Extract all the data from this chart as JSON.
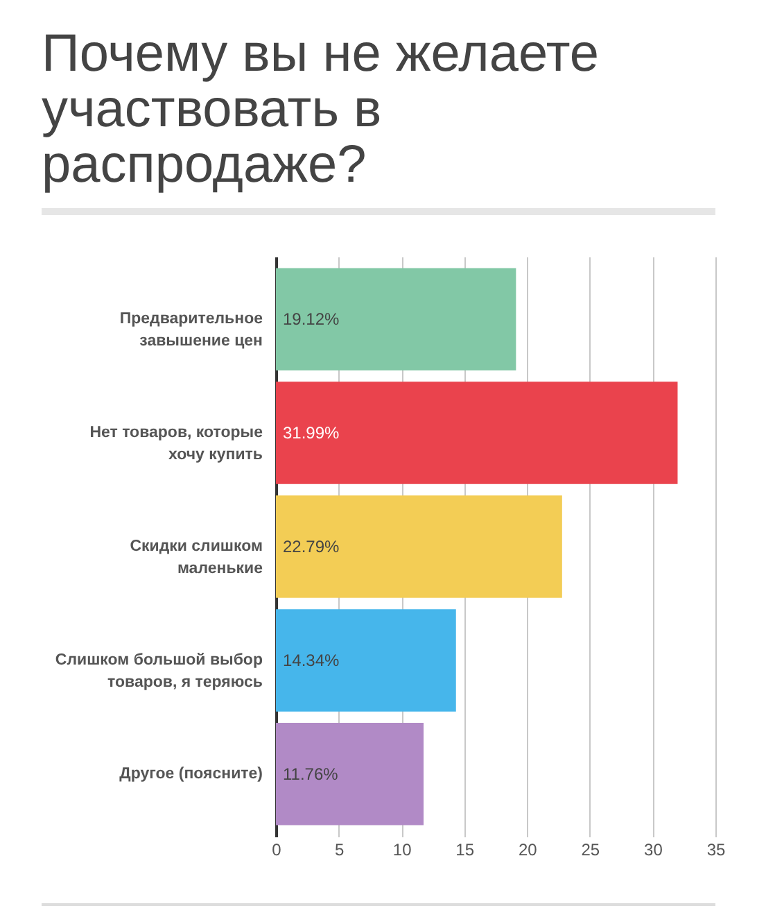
{
  "chart_data": {
    "type": "bar",
    "orientation": "horizontal",
    "title": "Почему вы не желаете участвовать в распродаже?",
    "categories": [
      "Предварительное завышение цен",
      "Нет товаров, которые хочу купить",
      "Скидки слишком маленькие",
      "Слишком большой выбор товаров, я теряюсь",
      "Другое (поясните)"
    ],
    "values": [
      19.12,
      31.99,
      22.79,
      14.34,
      11.76
    ],
    "colors": [
      "#82c8a6",
      "#ea434d",
      "#f3cd55",
      "#46b6eb",
      "#b18ac6"
    ],
    "value_labels": [
      "19.12%",
      "31.99%",
      "22.79%",
      "14.34%",
      "11.76%"
    ],
    "xlim": [
      0,
      35
    ],
    "xticks": [
      0,
      5,
      10,
      15,
      20,
      25,
      30,
      35
    ],
    "grid": "x"
  }
}
